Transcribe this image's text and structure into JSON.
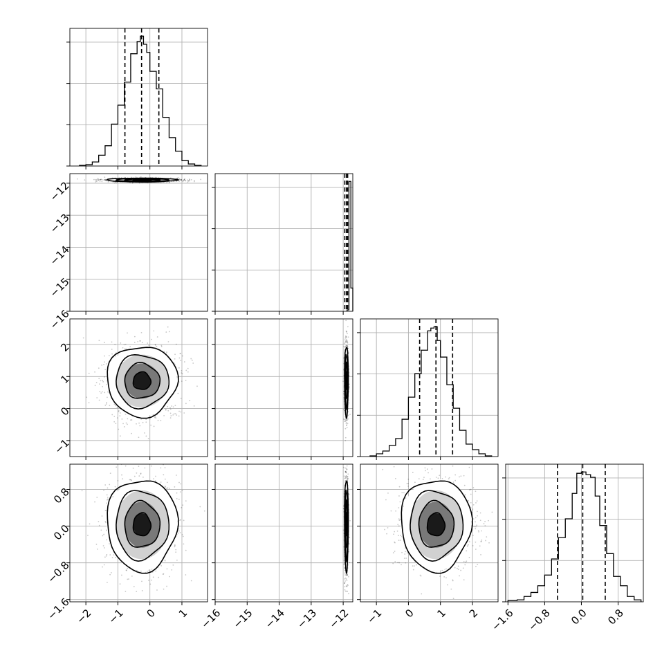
{
  "chart_data": {
    "type": "corner",
    "description_free": true,
    "params": [
      {
        "id": "p0",
        "range": [
          -2.5,
          1.8
        ],
        "ticks": [
          -2,
          -1,
          0,
          1
        ],
        "tick_labels": [
          "−2",
          "−1",
          "0",
          "1"
        ]
      },
      {
        "id": "p1",
        "range": [
          -16.0,
          -11.7
        ],
        "ticks": [
          -16,
          -15,
          -14,
          -13,
          -12
        ],
        "tick_labels": [
          "−16",
          "−15",
          "−14",
          "−13",
          "−12"
        ]
      },
      {
        "id": "p2",
        "range": [
          -1.5,
          2.8
        ],
        "ticks": [
          -1,
          0,
          1,
          2
        ],
        "tick_labels": [
          "−1",
          "0",
          "1",
          "2"
        ]
      },
      {
        "id": "p3",
        "range": [
          -1.65,
          1.35
        ],
        "ticks": [
          -1.6,
          -0.8,
          0.0,
          0.8
        ],
        "tick_labels": [
          "−1.6",
          "−0.8",
          "0.0",
          "0.8"
        ]
      }
    ],
    "marginals": [
      {
        "param": "p0",
        "quantiles": [
          -0.78,
          -0.26,
          0.28
        ],
        "bin_edges": [
          -2.2,
          -2.0,
          -1.8,
          -1.6,
          -1.4,
          -1.2,
          -1.0,
          -0.8,
          -0.6,
          -0.4,
          -0.3,
          -0.2,
          -0.1,
          0.0,
          0.2,
          0.4,
          0.6,
          0.8,
          1.0,
          1.2,
          1.4,
          1.6
        ],
        "counts": [
          0.5,
          1.0,
          3.0,
          8.0,
          15.0,
          31.0,
          45.0,
          62.0,
          83.0,
          92.0,
          96.0,
          90.0,
          84.0,
          70.0,
          57.0,
          36.0,
          21.0,
          11.0,
          4.0,
          1.5,
          0.5
        ]
      },
      {
        "param": "p1",
        "quantiles": [
          -11.95,
          -11.9,
          -11.86
        ],
        "bin_edges": [
          -11.88,
          -11.82,
          -11.76,
          -11.7
        ],
        "counts": [
          1,
          95,
          17
        ]
      },
      {
        "param": "p2",
        "quantiles": [
          0.35,
          0.86,
          1.38
        ],
        "bin_edges": [
          -1.2,
          -1.0,
          -0.8,
          -0.6,
          -0.4,
          -0.2,
          0.0,
          0.2,
          0.4,
          0.6,
          0.7,
          0.8,
          0.9,
          1.0,
          1.2,
          1.4,
          1.6,
          1.8,
          2.0,
          2.2,
          2.4,
          2.6
        ],
        "counts": [
          0.5,
          2.0,
          4.0,
          8.0,
          13.0,
          27.0,
          43.0,
          60.0,
          77.0,
          91.0,
          93.0,
          94.0,
          84.0,
          72.0,
          52.0,
          35.0,
          19.0,
          9.0,
          5.0,
          2.0,
          0.5
        ]
      },
      {
        "param": "p3",
        "quantiles": [
          -0.52,
          0.03,
          0.52
        ],
        "bin_edges": [
          -1.6,
          -1.4,
          -1.25,
          -1.1,
          -0.95,
          -0.8,
          -0.65,
          -0.5,
          -0.35,
          -0.2,
          -0.1,
          0.0,
          0.1,
          0.2,
          0.3,
          0.4,
          0.55,
          0.7,
          0.85,
          1.0,
          1.15,
          1.3
        ],
        "counts": [
          1.0,
          1.5,
          4.0,
          7.0,
          12.0,
          20.0,
          32.0,
          48.0,
          62.0,
          81.0,
          96.0,
          97.0,
          95.0,
          93.0,
          79.0,
          57.0,
          36.0,
          19.0,
          12.0,
          4.0,
          1.5
        ]
      }
    ],
    "joints": [
      {
        "x": "p0",
        "y": "p1",
        "center": [
          -0.25,
          -11.9
        ],
        "spread": [
          0.55,
          0.03
        ]
      },
      {
        "x": "p0",
        "y": "p2",
        "center": [
          -0.25,
          0.86
        ],
        "spread": [
          0.55,
          0.55
        ]
      },
      {
        "x": "p1",
        "y": "p2",
        "center": [
          -11.9,
          0.86
        ],
        "spread": [
          0.03,
          0.55
        ]
      },
      {
        "x": "p0",
        "y": "p3",
        "center": [
          -0.25,
          0.03
        ],
        "spread": [
          0.55,
          0.5
        ]
      },
      {
        "x": "p1",
        "y": "p3",
        "center": [
          -11.9,
          0.03
        ],
        "spread": [
          0.03,
          0.5
        ]
      },
      {
        "x": "p2",
        "y": "p3",
        "center": [
          0.86,
          0.03
        ],
        "spread": [
          0.55,
          0.5
        ]
      }
    ],
    "contour_levels_sigma": [
      0.5,
      1.0,
      1.5,
      2.0
    ],
    "grid": true,
    "legend": "none"
  }
}
